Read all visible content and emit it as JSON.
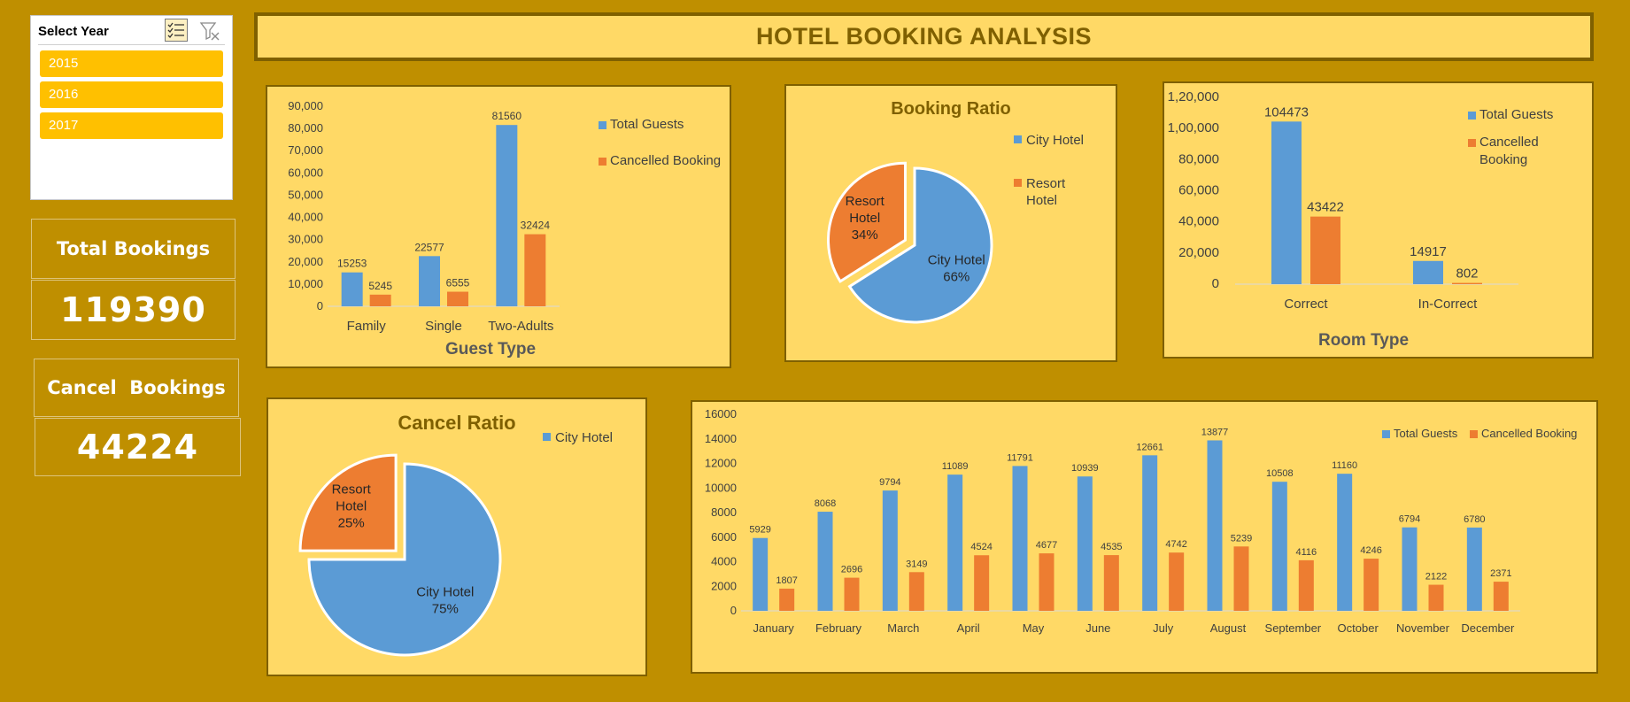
{
  "slicer": {
    "title": "Select Year",
    "multi_select_icon": "multi-select-icon",
    "clear_filter_icon": "clear-filter-icon",
    "items": [
      "2015",
      "2016",
      "2017"
    ]
  },
  "kpis": {
    "total_label": "Total Bookings",
    "total_value": "119390",
    "cancel_label": "Cancel  Bookings",
    "cancel_value": "44224"
  },
  "title": "HOTEL BOOKING ANALYSIS",
  "colors": {
    "blue": "#5B9BD5",
    "orange": "#ED7D31",
    "panel": "#FFD966",
    "background": "#BF8F00",
    "title": "#7F6000"
  },
  "chart_data": [
    {
      "id": "guest_type",
      "type": "bar",
      "title": "",
      "xlabel": "Guest Type",
      "categories": [
        "Family",
        "Single",
        "Two-Adults"
      ],
      "series": [
        {
          "name": "Total Guests",
          "values": [
            15253,
            22577,
            81560
          ]
        },
        {
          "name": "Cancelled Booking",
          "values": [
            5245,
            6555,
            32424
          ]
        }
      ],
      "ylim": [
        0,
        90000
      ],
      "yticks": [
        0,
        10000,
        20000,
        30000,
        40000,
        50000,
        60000,
        70000,
        80000,
        90000
      ],
      "ytick_labels": [
        "0",
        "10,000",
        "20,000",
        "30,000",
        "40,000",
        "50,000",
        "60,000",
        "70,000",
        "80,000",
        "90,000"
      ],
      "legend": "right"
    },
    {
      "id": "booking_ratio",
      "type": "pie",
      "title": "Booking Ratio",
      "labels": [
        "City Hotel",
        "Resort Hotel"
      ],
      "values": [
        66,
        34
      ],
      "slice_labels": [
        [
          "City Hotel",
          "66%"
        ],
        [
          "Resort",
          "Hotel",
          "34%"
        ]
      ],
      "legend_entries": [
        [
          "City Hotel"
        ],
        [
          "Resort",
          "Hotel"
        ]
      ],
      "legend": "right"
    },
    {
      "id": "room_type",
      "type": "bar",
      "title": "",
      "xlabel": "Room Type",
      "categories": [
        "Correct",
        "In-Correct"
      ],
      "series": [
        {
          "name": "Total Guests",
          "values": [
            104473,
            14917
          ]
        },
        {
          "name": "Cancelled Booking",
          "values": [
            43422,
            802
          ]
        }
      ],
      "ylim": [
        0,
        120000
      ],
      "yticks": [
        0,
        20000,
        40000,
        60000,
        80000,
        100000,
        120000
      ],
      "ytick_labels": [
        "0",
        "20,000",
        "40,000",
        "60,000",
        "80,000",
        "1,00,000",
        "1,20,000"
      ],
      "legend_entries": [
        [
          "Total Guests"
        ],
        [
          "Cancelled",
          "Booking"
        ]
      ],
      "legend": "right"
    },
    {
      "id": "cancel_ratio",
      "type": "pie",
      "title": "Cancel Ratio",
      "labels": [
        "City Hotel",
        "Resort Hotel"
      ],
      "values": [
        75,
        25
      ],
      "slice_labels": [
        [
          "City Hotel",
          "75%"
        ],
        [
          "Resort",
          "Hotel",
          "25%"
        ]
      ],
      "legend_entries": [
        [
          "City Hotel"
        ]
      ],
      "legend": "top-right"
    },
    {
      "id": "monthly",
      "type": "bar",
      "title": "",
      "categories": [
        "January",
        "February",
        "March",
        "April",
        "May",
        "June",
        "July",
        "August",
        "September",
        "October",
        "November",
        "December"
      ],
      "series": [
        {
          "name": "Total Guests",
          "values": [
            5929,
            8068,
            9794,
            11089,
            11791,
            10939,
            12661,
            13877,
            10508,
            11160,
            6794,
            6780
          ]
        },
        {
          "name": "Cancelled Booking",
          "values": [
            1807,
            2696,
            3149,
            4524,
            4677,
            4535,
            4742,
            5239,
            4116,
            4246,
            2122,
            2371
          ]
        }
      ],
      "ylim": [
        0,
        16000
      ],
      "yticks": [
        0,
        2000,
        4000,
        6000,
        8000,
        10000,
        12000,
        14000,
        16000
      ],
      "ytick_labels": [
        "0",
        "2000",
        "4000",
        "6000",
        "8000",
        "10000",
        "12000",
        "14000",
        "16000"
      ],
      "legend": "top-right"
    }
  ]
}
